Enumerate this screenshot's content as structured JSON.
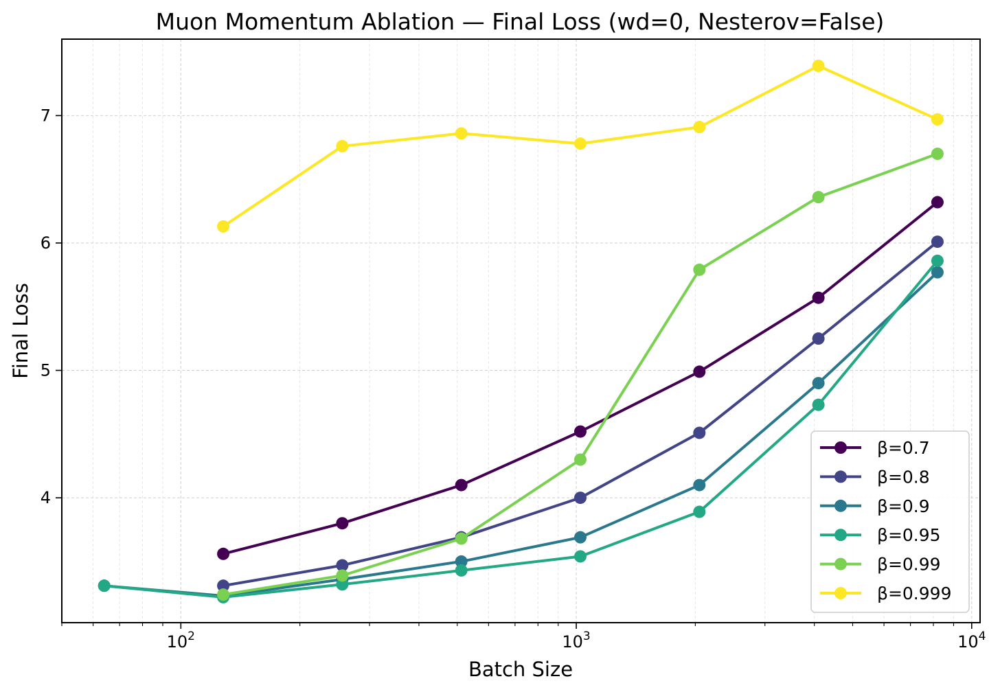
{
  "chart_data": {
    "type": "line",
    "title": "Muon Momentum Ablation — Final Loss  (wd=0, Nesterov=False)",
    "xlabel": "Batch Size",
    "ylabel": "Final Loss",
    "xscale": "log",
    "xlim": [
      50,
      10500
    ],
    "ylim": [
      3.02,
      7.6
    ],
    "xticks": [
      {
        "value": 100,
        "base": "10",
        "exp": "2"
      },
      {
        "value": 1000,
        "base": "10",
        "exp": "3"
      },
      {
        "value": 10000,
        "base": "10",
        "exp": "4"
      }
    ],
    "yticks": [
      4,
      5,
      6,
      7
    ],
    "grid": true,
    "legend_position": "lower-right",
    "series": [
      {
        "name": "β=0.7",
        "color": "#440154",
        "x": [
          128,
          256,
          512,
          1024,
          2048,
          4096,
          8192
        ],
        "y": [
          3.56,
          3.8,
          4.1,
          4.52,
          4.99,
          5.57,
          6.32
        ]
      },
      {
        "name": "β=0.8",
        "color": "#414487",
        "x": [
          128,
          256,
          512,
          1024,
          2048,
          4096,
          8192
        ],
        "y": [
          3.31,
          3.47,
          3.69,
          4.0,
          4.51,
          5.25,
          6.01
        ]
      },
      {
        "name": "β=0.9",
        "color": "#2a788e",
        "x": [
          64,
          128,
          256,
          512,
          1024,
          2048,
          4096,
          8192
        ],
        "y": [
          3.31,
          3.23,
          3.36,
          3.5,
          3.69,
          4.1,
          4.9,
          5.77
        ]
      },
      {
        "name": "β=0.95",
        "color": "#22a884",
        "x": [
          64,
          128,
          256,
          512,
          1024,
          2048,
          4096,
          8192
        ],
        "y": [
          3.31,
          3.22,
          3.32,
          3.43,
          3.54,
          3.89,
          4.73,
          5.86
        ]
      },
      {
        "name": "β=0.99",
        "color": "#7ad151",
        "x": [
          128,
          256,
          512,
          1024,
          2048,
          4096,
          8192
        ],
        "y": [
          3.24,
          3.39,
          3.68,
          4.3,
          5.79,
          6.36,
          6.7
        ]
      },
      {
        "name": "β=0.999",
        "color": "#fde725",
        "x": [
          128,
          256,
          512,
          1024,
          2048,
          4096,
          8192
        ],
        "y": [
          6.13,
          6.76,
          6.86,
          6.78,
          6.91,
          7.39,
          6.97
        ]
      }
    ]
  }
}
